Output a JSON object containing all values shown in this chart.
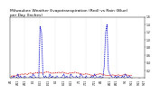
{
  "title": "Milwaukee Weather Evapotranspiration (Red) vs Rain (Blue)\nper Day (Inches)",
  "title_fontsize": 3.2,
  "background_color": "#ffffff",
  "et_color": "#cc0000",
  "rain_color": "#0000cc",
  "grid_color": "#aaaaaa",
  "ylim": [
    0,
    1.6
  ],
  "yticks": [
    0.2,
    0.4,
    0.6,
    0.8,
    1.0,
    1.2,
    1.4,
    1.6
  ],
  "et_data": [
    0.05,
    0.04,
    0.06,
    0.05,
    0.07,
    0.08,
    0.07,
    0.09,
    0.1,
    0.09,
    0.11,
    0.1,
    0.09,
    0.12,
    0.13,
    0.12,
    0.11,
    0.13,
    0.14,
    0.13,
    0.15,
    0.14,
    0.13,
    0.12,
    0.14,
    0.15,
    0.16,
    0.15,
    0.14,
    0.13,
    0.12,
    0.13,
    0.14,
    0.13,
    0.15,
    0.14,
    0.13,
    0.15,
    0.14,
    0.13,
    0.12,
    0.11,
    0.13,
    0.12,
    0.14,
    0.13,
    0.15,
    0.14,
    0.13,
    0.12,
    0.11,
    0.1,
    0.09,
    0.1,
    0.11,
    0.1,
    0.09,
    0.08,
    0.07,
    0.06,
    0.07,
    0.08,
    0.09,
    0.1,
    0.11,
    0.1,
    0.09,
    0.08,
    0.07,
    0.06,
    0.07,
    0.06,
    0.07,
    0.08,
    0.07,
    0.06,
    0.07,
    0.08,
    0.07,
    0.06,
    0.07,
    0.08,
    0.09,
    0.08,
    0.07,
    0.06,
    0.07,
    0.06
  ],
  "rain_data": [
    0.0,
    0.0,
    0.05,
    0.0,
    0.0,
    0.1,
    0.0,
    0.05,
    0.0,
    0.0,
    0.05,
    0.0,
    0.0,
    0.0,
    0.05,
    0.0,
    0.1,
    0.05,
    0.0,
    0.0,
    0.0,
    1.35,
    1.2,
    0.1,
    0.0,
    0.05,
    0.0,
    0.0,
    0.1,
    0.0,
    0.05,
    0.0,
    0.0,
    0.05,
    0.0,
    0.0,
    0.0,
    0.05,
    0.1,
    0.0,
    0.05,
    0.0,
    0.0,
    0.1,
    0.05,
    0.0,
    0.0,
    0.05,
    0.0,
    0.0,
    0.1,
    0.05,
    0.0,
    0.0,
    0.05,
    0.0,
    0.0,
    0.0,
    0.05,
    0.0,
    0.1,
    0.05,
    0.0,
    0.0,
    0.05,
    0.0,
    0.0,
    0.3,
    1.2,
    1.4,
    0.2,
    0.1,
    0.05,
    0.0,
    0.0,
    0.05,
    0.0,
    0.05,
    0.0,
    0.0,
    0.05,
    0.0,
    0.1,
    0.05,
    0.0,
    0.05,
    0.0,
    0.0
  ],
  "vlines_x": [
    10,
    21,
    32,
    43,
    54,
    65,
    76
  ],
  "n_points": 88,
  "xlabels": [
    "4/1",
    "4/11",
    "4/21",
    "5/1",
    "5/11",
    "5/21",
    "6/1",
    "6/11",
    "6/21",
    "7/1",
    "7/11",
    "7/21",
    "8/1",
    "8/11",
    "8/21",
    "9/1",
    "9/11",
    "9/21",
    "9/27"
  ],
  "xlabels_x": [
    0,
    5,
    10,
    16,
    21,
    27,
    32,
    38,
    43,
    49,
    54,
    60,
    65,
    71,
    76,
    82,
    87,
    92,
    96
  ]
}
